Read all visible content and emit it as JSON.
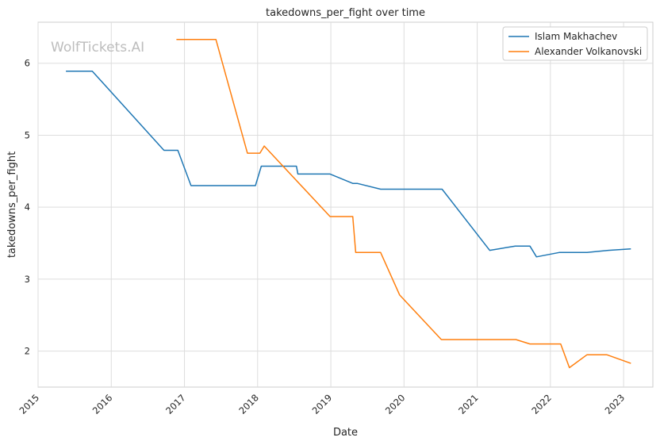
{
  "chart_data": {
    "type": "line",
    "title": "takedowns_per_fight over time",
    "xlabel": "Date",
    "ylabel": "takedowns_per_fight",
    "watermark": "WolfTickets.AI",
    "xlim": [
      2015.0,
      2023.4
    ],
    "ylim": [
      1.5,
      6.57
    ],
    "x_ticks": [
      {
        "value": 2015,
        "label": "2015"
      },
      {
        "value": 2016,
        "label": "2016"
      },
      {
        "value": 2017,
        "label": "2017"
      },
      {
        "value": 2018,
        "label": "2018"
      },
      {
        "value": 2019,
        "label": "2019"
      },
      {
        "value": 2020,
        "label": "2020"
      },
      {
        "value": 2021,
        "label": "2021"
      },
      {
        "value": 2022,
        "label": "2022"
      },
      {
        "value": 2023,
        "label": "2023"
      }
    ],
    "y_ticks": [
      {
        "value": 2,
        "label": "2"
      },
      {
        "value": 3,
        "label": "3"
      },
      {
        "value": 4,
        "label": "4"
      },
      {
        "value": 5,
        "label": "5"
      },
      {
        "value": 6,
        "label": "6"
      }
    ],
    "legend_position": "top-right",
    "series": [
      {
        "name": "Islam Makhachev",
        "color": "#1f77b4",
        "x": [
          2015.38,
          2015.74,
          2016.72,
          2016.91,
          2017.09,
          2017.97,
          2018.05,
          2018.53,
          2018.55,
          2018.99,
          2019.3,
          2019.36,
          2019.68,
          2020.52,
          2021.17,
          2021.52,
          2021.72,
          2021.81,
          2022.12,
          2022.5,
          2022.79,
          2023.1
        ],
        "y": [
          5.89,
          5.89,
          4.79,
          4.79,
          4.3,
          4.3,
          4.57,
          4.57,
          4.46,
          4.46,
          4.33,
          4.33,
          4.25,
          4.25,
          3.4,
          3.46,
          3.46,
          3.31,
          3.37,
          3.37,
          3.4,
          3.42
        ]
      },
      {
        "name": "Alexander Volkanovski",
        "color": "#ff7f0e",
        "x": [
          2016.89,
          2017.43,
          2017.86,
          2018.03,
          2018.09,
          2018.99,
          2019.3,
          2019.34,
          2019.68,
          2019.94,
          2020.51,
          2021.53,
          2021.72,
          2022.14,
          2022.26,
          2022.5,
          2022.77,
          2023.1
        ],
        "y": [
          6.33,
          6.33,
          4.75,
          4.75,
          4.85,
          3.87,
          3.87,
          3.37,
          3.37,
          2.78,
          2.16,
          2.16,
          2.1,
          2.1,
          1.77,
          1.95,
          1.95,
          1.83
        ]
      }
    ]
  }
}
